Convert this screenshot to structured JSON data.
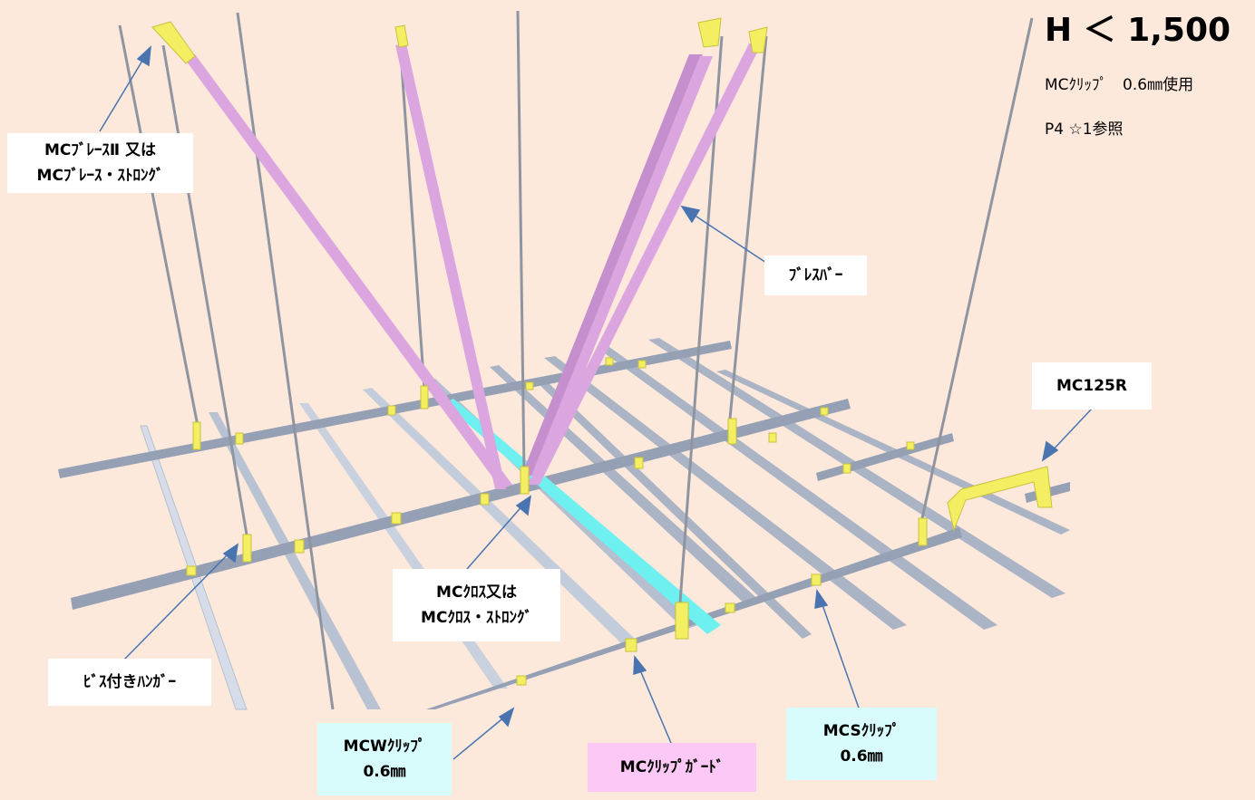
{
  "heading": "H ＜ 1,500",
  "notes": [
    "MCｸﾘｯﾌﾟ　0.6㎜使用",
    "P4 ☆1参照"
  ],
  "labels": {
    "brace2": [
      "MCﾌﾞﾚｰｽⅡ 又は",
      "MCﾌﾞﾚｰｽ・ｽﾄﾛﾝｸﾞ"
    ],
    "bracebar": [
      "ﾌﾞﾚｽﾊﾞｰ"
    ],
    "mc125r": [
      "MC125R"
    ],
    "cross": [
      "MCｸﾛｽ又は",
      "MCｸﾛｽ・ｽﾄﾛﾝｸﾞ"
    ],
    "hanger": [
      "ﾋﾞｽ付きﾊﾝｶﾞｰ"
    ],
    "mcw": [
      "MCWｸﾘｯﾌﾟ",
      "0.6㎜"
    ],
    "guard": [
      "MCｸﾘｯﾌﾟｶﾞｰﾄﾞ"
    ],
    "mcs": [
      "MCSｸﾘｯﾌﾟ",
      "0.6㎜"
    ]
  },
  "colors": {
    "background": "#fce9dc",
    "brace": "#dba6df",
    "cross": "#6ff0f0",
    "channel": "#a9b3c5",
    "clip": "#f3ee62",
    "arrow": "#4a74b0",
    "label_white": "#ffffff",
    "label_cyan": "#d8fbfc",
    "label_pink": "#fcc8f5"
  }
}
